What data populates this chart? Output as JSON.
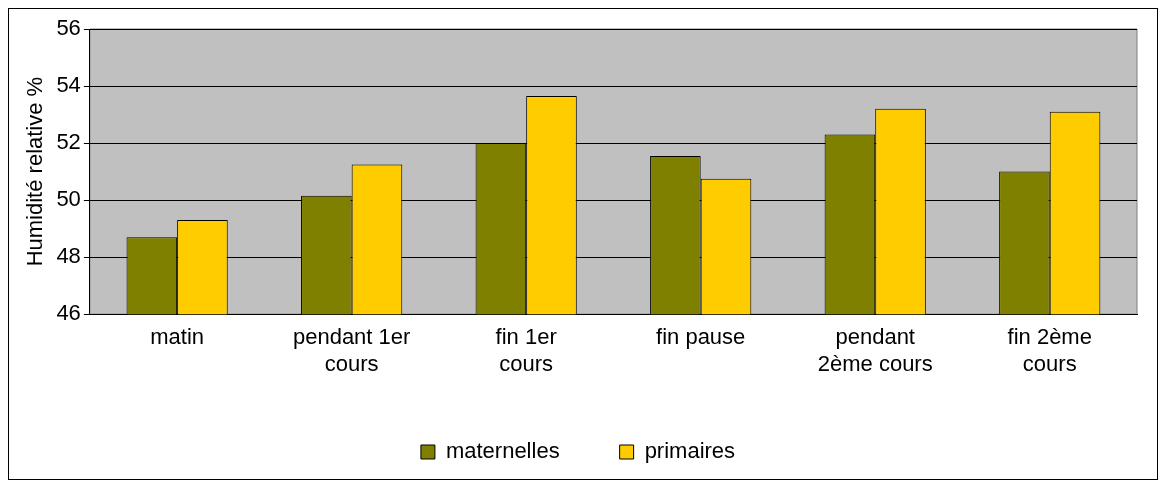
{
  "chart_data": {
    "type": "bar",
    "ylabel": "Humidité relative %",
    "categories": [
      "matin",
      "pendant 1er cours",
      "fin 1er cours",
      "fin pause",
      "pendant 2ème cours",
      "fin 2ème cours"
    ],
    "series": [
      {
        "name": "maternelles",
        "color": "#808000",
        "values": [
          48.7,
          50.15,
          52.0,
          51.55,
          52.3,
          51.0
        ]
      },
      {
        "name": "primaires",
        "color": "#ffcc00",
        "values": [
          49.3,
          51.25,
          53.65,
          50.75,
          53.2,
          53.1
        ]
      }
    ],
    "ylim": [
      46,
      56
    ],
    "yticks": [
      46,
      48,
      50,
      52,
      54,
      56
    ],
    "grid": "y",
    "legend": "bottom"
  }
}
